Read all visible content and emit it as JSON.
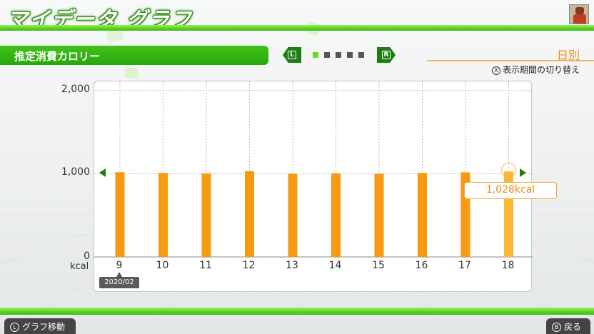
{
  "header": {
    "title": "マイデータ グラフ",
    "avatar_icon": "mii-avatar-icon"
  },
  "section": {
    "label": "推定消費カロリー",
    "nav_left_key": "L",
    "nav_right_key": "R",
    "page_count": 5,
    "active_page": 1
  },
  "period": {
    "label": "日別",
    "hint_key": "X",
    "hint_text": "表示期間の切り替え"
  },
  "chart_data": {
    "type": "bar",
    "categories": [
      "9",
      "10",
      "11",
      "12",
      "13",
      "14",
      "15",
      "16",
      "17",
      "18"
    ],
    "values": [
      1020,
      1010,
      1005,
      1030,
      1000,
      1005,
      998,
      1010,
      1018,
      1028
    ],
    "highlight_index": 9,
    "unit": "kcal",
    "y_ticks": [
      "0",
      "1,000",
      "2,000"
    ],
    "ylim": [
      0,
      2000
    ],
    "reference_line": 1000,
    "month_tag": "2020/02",
    "callout": "1,028kcal",
    "colors": {
      "bar": "#f79a12",
      "bar_highlight": "#fbb832",
      "grid": "#bbbbbb",
      "reference": "#1e7d10"
    }
  },
  "footer": {
    "left_key": "L",
    "left_label": "グラフ移動",
    "right_key": "B",
    "right_label": "戻る"
  }
}
